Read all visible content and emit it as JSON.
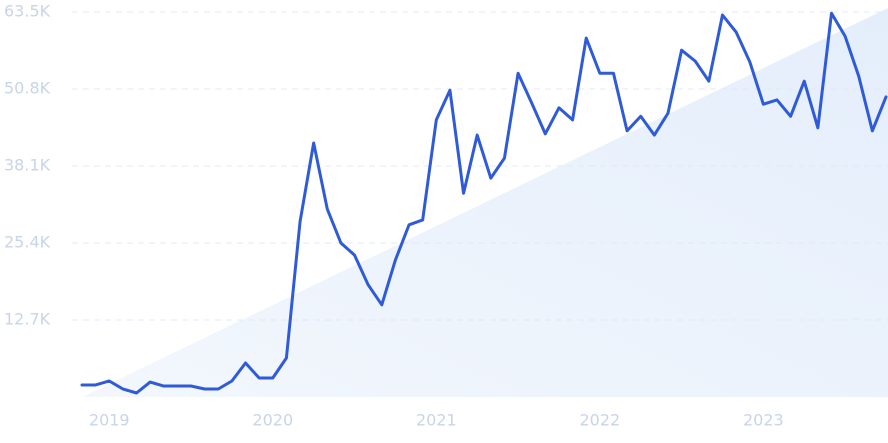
{
  "chart_data": {
    "type": "line",
    "categories": [
      null,
      null,
      "2019",
      null,
      null,
      null,
      null,
      null,
      null,
      null,
      null,
      null,
      null,
      null,
      "2020",
      null,
      null,
      null,
      null,
      null,
      null,
      null,
      null,
      null,
      null,
      null,
      "2021",
      null,
      null,
      null,
      null,
      null,
      null,
      null,
      null,
      null,
      null,
      null,
      "2022",
      null,
      null,
      null,
      null,
      null,
      null,
      null,
      null,
      null,
      null,
      null,
      "2023",
      null,
      null,
      null,
      null,
      null,
      null,
      null,
      null,
      null
    ],
    "series": [
      {
        "color": "#2f5bd8",
        "values": [
          1.98,
          1.98,
          2.64,
          1.32,
          0.66,
          2.47,
          1.81,
          1.81,
          1.81,
          1.32,
          1.32,
          2.64,
          5.61,
          3.13,
          3.13,
          6.43,
          28.9,
          41.9,
          31.0,
          25.4,
          23.4,
          18.5,
          15.2,
          22.6,
          28.4,
          29.2,
          45.7,
          50.6,
          33.6,
          43.2,
          36.1,
          39.4,
          53.4,
          48.5,
          43.4,
          47.7,
          45.7,
          59.2,
          53.4,
          53.4,
          43.9,
          46.3,
          43.2,
          46.8,
          57.2,
          55.4,
          52.1,
          63.0,
          60.2,
          55.3,
          48.3,
          49.0,
          46.3,
          52.1,
          44.4,
          63.3,
          59.5,
          52.9,
          43.9,
          49.5
        ]
      }
    ],
    "ylim": [
      0,
      63.5
    ],
    "yticks": [
      {
        "value": 12.7,
        "label": "12.7K"
      },
      {
        "value": 25.4,
        "label": "25.4K"
      },
      {
        "value": 38.1,
        "label": "38.1K"
      },
      {
        "value": 50.8,
        "label": "50.8K"
      },
      {
        "value": 63.5,
        "label": "63.5K"
      }
    ],
    "grid": true
  }
}
